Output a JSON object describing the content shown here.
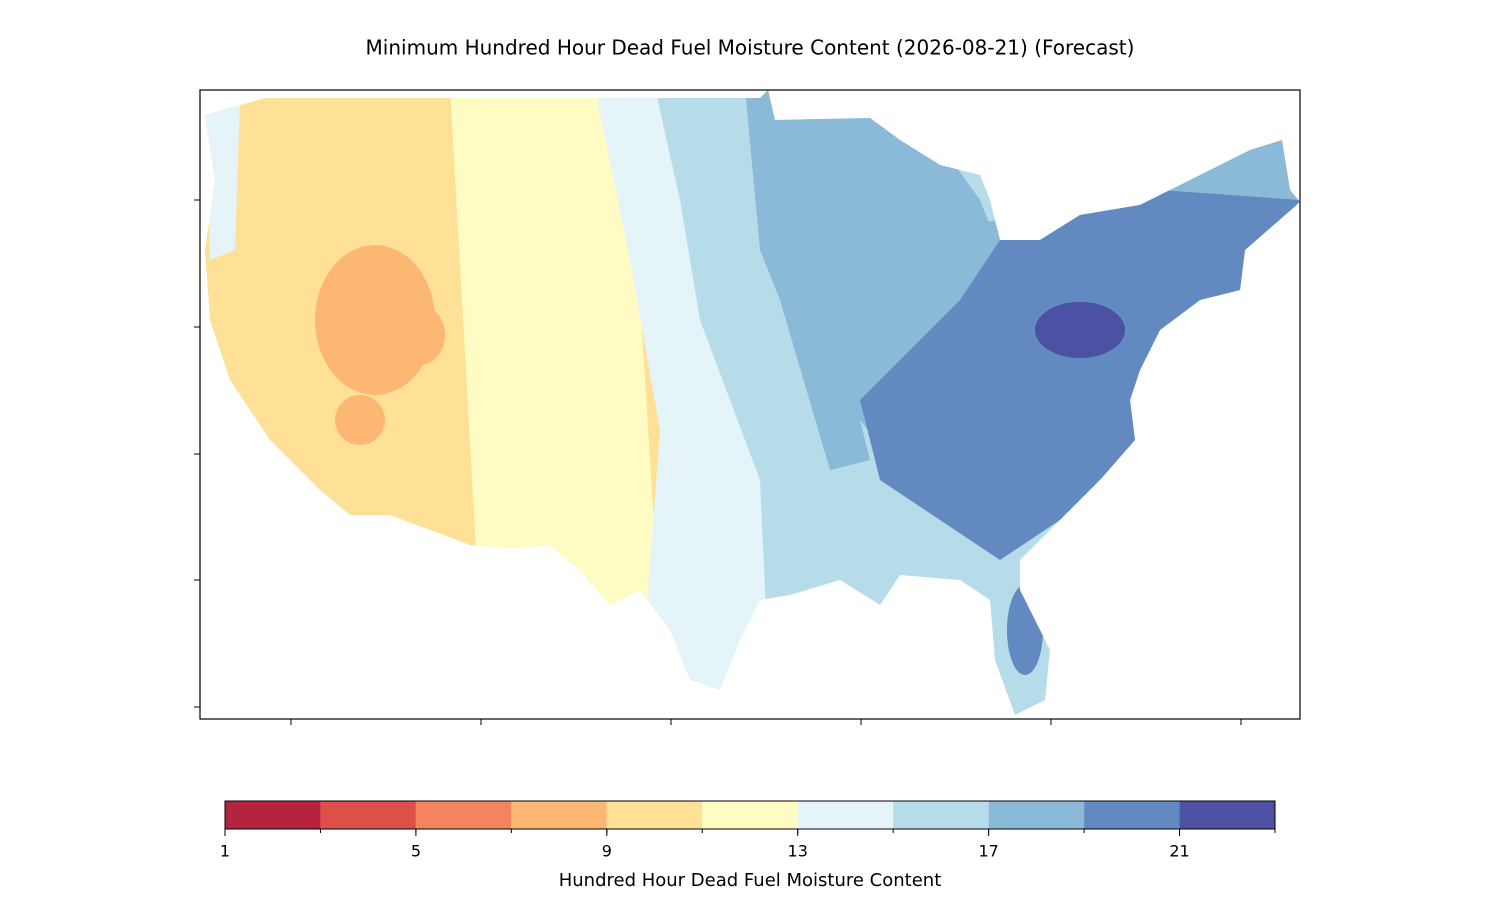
{
  "chart_data": {
    "type": "map",
    "title": "Minimum Hundred Hour Dead Fuel Moisture Content (2026-08-21) (Forecast)",
    "colorbar": {
      "label": "Hundred Hour Dead Fuel Moisture Content",
      "bounds": [
        1,
        3,
        5,
        7,
        9,
        11,
        13,
        15,
        17,
        19,
        21,
        23
      ],
      "colors": [
        "#b5233f",
        "#dd4f48",
        "#f4845f",
        "#fcb872",
        "#fee197",
        "#fefcc3",
        "#e5f4f9",
        "#b6dcea",
        "#8bb9d8",
        "#6289c0",
        "#4d51a3"
      ],
      "ticks": [
        1,
        5,
        9,
        13,
        17,
        21
      ]
    }
  }
}
